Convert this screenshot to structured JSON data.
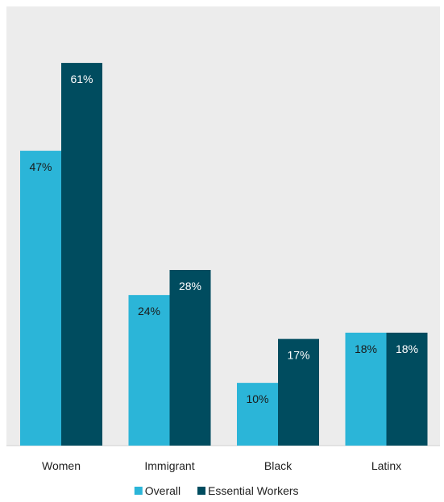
{
  "chart_data": {
    "type": "bar",
    "title": "",
    "xlabel": "",
    "ylabel": "",
    "categories": [
      "Women",
      "Immigrant",
      "Black",
      "Latinx"
    ],
    "series": [
      {
        "name": "Overall",
        "values": [
          47,
          24,
          10,
          18
        ],
        "labels": [
          "47%",
          "24%",
          "10%",
          "18%"
        ],
        "color": "#2bb5d8",
        "label_color": "#1a1a1a"
      },
      {
        "name": "Essential Workers",
        "values": [
          61,
          28,
          17,
          18
        ],
        "labels": [
          "61%",
          "28%",
          "17%",
          "18%"
        ],
        "color": "#004c5f",
        "label_color": "#ffffff"
      }
    ],
    "ylim": [
      0,
      70
    ],
    "grid": false,
    "legend": "bottom-center",
    "plot_background": "#ececec"
  }
}
